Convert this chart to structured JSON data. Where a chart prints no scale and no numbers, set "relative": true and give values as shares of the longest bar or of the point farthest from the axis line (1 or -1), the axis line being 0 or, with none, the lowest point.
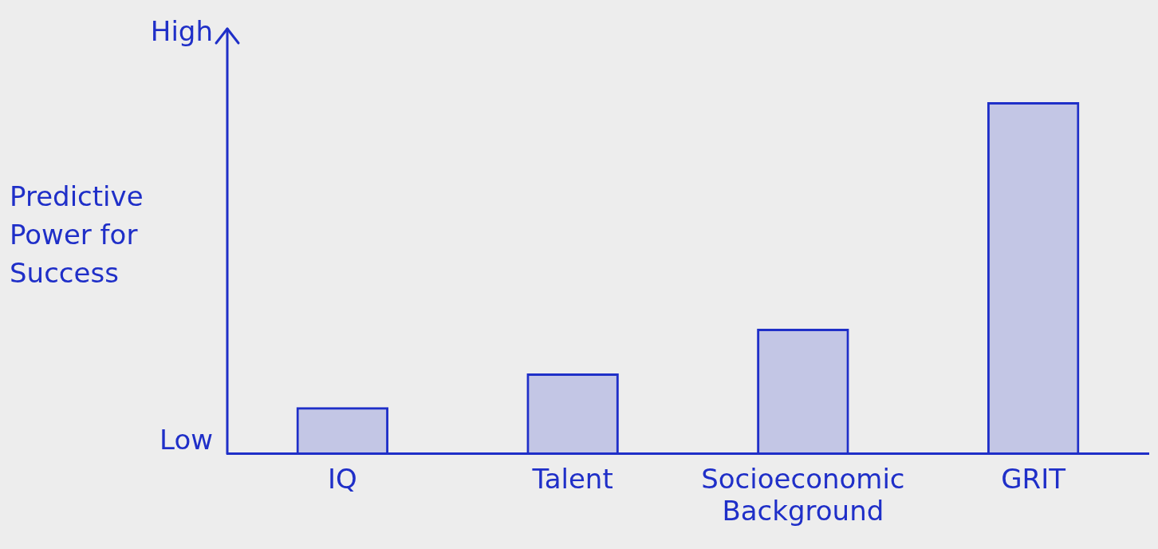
{
  "chart_data": {
    "type": "bar",
    "ylabel": "Predictive Power for Success",
    "categories": [
      "IQ",
      "Talent",
      "Socioeconomic Background",
      "GRIT"
    ],
    "values": [
      0.132,
      0.228,
      0.355,
      1
    ],
    "color": "#1f2fc8",
    "relative": true,
    "annotations": [
      "High",
      "Low"
    ],
    "grid": false
  }
}
